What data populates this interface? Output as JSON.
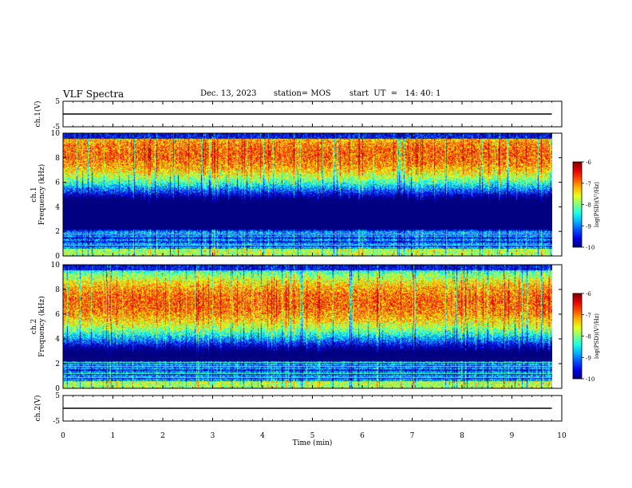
{
  "header": {
    "title": "VLF Spectra",
    "date": "Dec. 13, 2023",
    "station": "station= MOS",
    "start": "start  UT  =   14: 40: 1"
  },
  "chart_data": [
    {
      "type": "line",
      "name": "ch1-waveform",
      "ylabel": "ch.1(V)",
      "ylim": [
        -5,
        5
      ],
      "yticks": [
        "5",
        "-5"
      ],
      "xlim": [
        0,
        10
      ],
      "x": [
        0,
        9.8
      ],
      "y": [
        0,
        0
      ]
    },
    {
      "type": "heatmap",
      "name": "ch1-spectrogram",
      "ylabel": "ch.1\nFrequency (kHz)",
      "ylim": [
        0,
        10
      ],
      "yticks": [
        "0",
        "2",
        "4",
        "6",
        "8",
        "10"
      ],
      "xlim": [
        0,
        10
      ],
      "data_xmax": 9.8,
      "peak_band_khz": [
        7.5,
        9.2
      ],
      "colorbar": {
        "label": "log(PSD)(V²/Hz)",
        "range": [
          -10,
          -6
        ],
        "ticks": [
          "-6",
          "-7",
          "-8",
          "-9",
          "-10"
        ]
      }
    },
    {
      "type": "heatmap",
      "name": "ch2-spectrogram",
      "ylabel": "ch.2\nFrequency (kHz)",
      "ylim": [
        0,
        10
      ],
      "yticks": [
        "0",
        "2",
        "4",
        "6",
        "8",
        "10"
      ],
      "xlim": [
        0,
        10
      ],
      "data_xmax": 9.8,
      "peak_band_khz": [
        6.0,
        8.0
      ],
      "colorbar": {
        "label": "log(PSD)(V²/Hz)",
        "range": [
          -10,
          -6
        ],
        "ticks": [
          "-6",
          "-7",
          "-8",
          "-9",
          "-10"
        ]
      }
    },
    {
      "type": "line",
      "name": "ch2-waveform",
      "ylabel": "ch.2(V)",
      "ylim": [
        -5,
        5
      ],
      "yticks": [
        "5",
        "-5"
      ],
      "xlim": [
        0,
        10
      ],
      "x": [
        0,
        9.8
      ],
      "y": [
        0,
        0
      ]
    }
  ],
  "xaxis": {
    "label": "Time  (min)",
    "ticks": [
      "0",
      "1",
      "2",
      "3",
      "4",
      "5",
      "6",
      "7",
      "8",
      "9",
      "10"
    ]
  }
}
